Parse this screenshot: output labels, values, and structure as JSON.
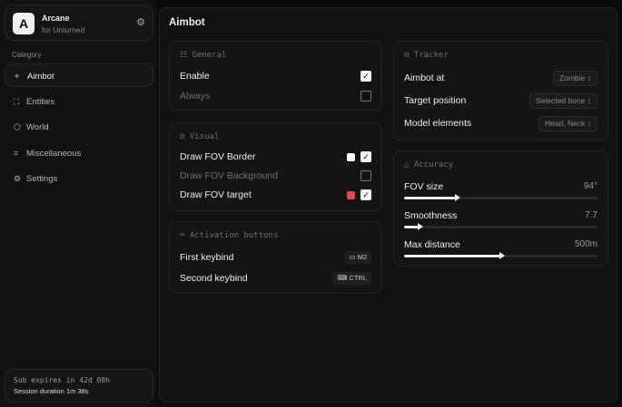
{
  "brand": {
    "logo": "A",
    "name": "Arcane",
    "subtitle": "for Unturned"
  },
  "sidebar": {
    "category_label": "Category",
    "items": [
      {
        "label": "Aimbot",
        "icon": "crosshair-icon",
        "active": true
      },
      {
        "label": "Entities",
        "icon": "scan-icon"
      },
      {
        "label": "World",
        "icon": "cube-icon"
      },
      {
        "label": "Miscellaneous",
        "icon": "grid-icon"
      },
      {
        "label": "Settings",
        "icon": "gear-icon"
      }
    ]
  },
  "footer": {
    "sub": "Sub expires in 42d 08h",
    "session": "Session duration 1m 38s"
  },
  "page_title": "Aimbot",
  "general": {
    "title": "General",
    "enable": {
      "label": "Enable",
      "checked": true
    },
    "always": {
      "label": "Always",
      "checked": false
    }
  },
  "visual": {
    "title": "Visual",
    "border": {
      "label": "Draw FOV Border",
      "checked": true,
      "color": "#ffffff"
    },
    "background": {
      "label": "Draw FOV Background",
      "checked": false
    },
    "target": {
      "label": "Draw FOV target",
      "checked": true,
      "color": "#e5484d"
    }
  },
  "activation": {
    "title": "Activation buttons",
    "first": {
      "label": "First keybind",
      "key": "M2"
    },
    "second": {
      "label": "Second keybind",
      "key": "CTRL"
    }
  },
  "tracker": {
    "title": "Tracker",
    "aimbot_at": {
      "label": "Aimbot at",
      "value": "Zombie"
    },
    "target_position": {
      "label": "Target position",
      "value": "Selected bone"
    },
    "model_elements": {
      "label": "Model elements",
      "value": "Head, Neck"
    }
  },
  "accuracy": {
    "title": "Accuracy",
    "fov": {
      "label": "FOV size",
      "value": "94°",
      "fill_pct": 27
    },
    "smooth": {
      "label": "Smoothness",
      "value": "7.7",
      "fill_pct": 8
    },
    "distance": {
      "label": "Max distance",
      "value": "500m",
      "fill_pct": 50
    }
  }
}
